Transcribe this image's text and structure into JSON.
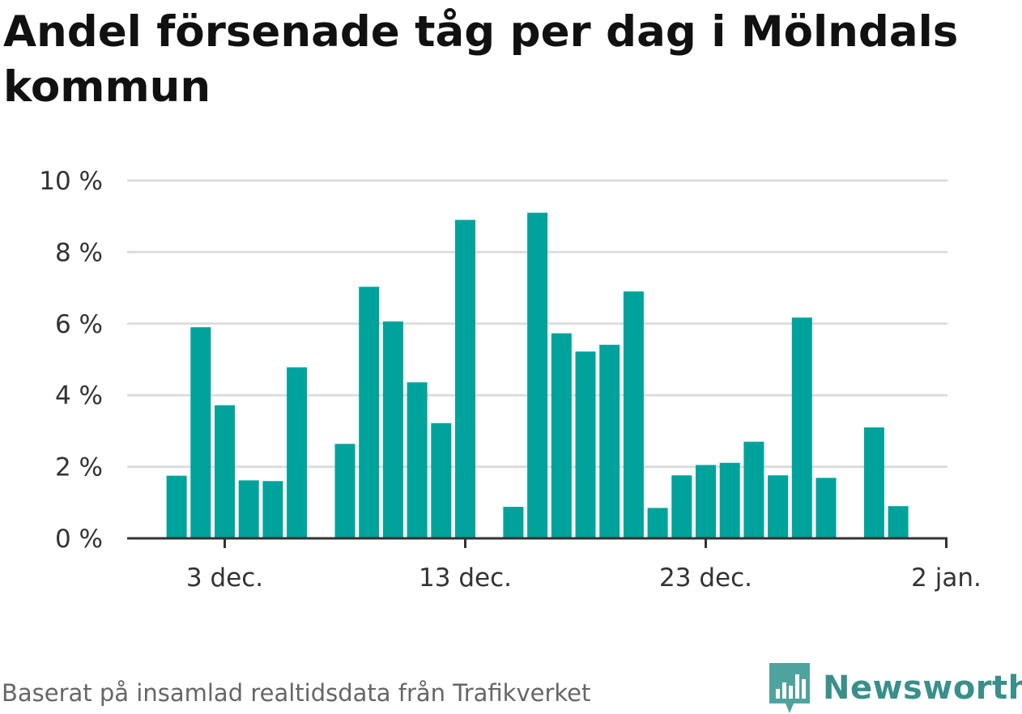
{
  "chart_data": {
    "type": "bar",
    "title": "Andel försenade tåg per dag i Mölndals kommun",
    "xlabel": "",
    "ylabel": "",
    "ylim": [
      0,
      10
    ],
    "y_ticks": [
      0,
      2,
      4,
      6,
      8,
      10
    ],
    "y_tick_labels": [
      "0 %",
      "2 %",
      "4 %",
      "6 %",
      "8 %",
      "10 %"
    ],
    "x_ticks": [
      {
        "day": 3,
        "label": "3 dec."
      },
      {
        "day": 13,
        "label": "13 dec."
      },
      {
        "day": 23,
        "label": "23 dec."
      },
      {
        "day": 33,
        "label": "2 jan."
      }
    ],
    "grid": true,
    "bar_color": "#00a39b",
    "categories": [
      "1 dec.",
      "2 dec.",
      "3 dec.",
      "4 dec.",
      "5 dec.",
      "6 dec.",
      "7 dec.",
      "8 dec.",
      "9 dec.",
      "10 dec.",
      "11 dec.",
      "12 dec.",
      "13 dec.",
      "14 dec.",
      "15 dec.",
      "16 dec.",
      "17 dec.",
      "18 dec.",
      "19 dec.",
      "20 dec.",
      "21 dec.",
      "22 dec.",
      "23 dec.",
      "24 dec.",
      "25 dec.",
      "26 dec.",
      "27 dec.",
      "28 dec.",
      "29 dec.",
      "30 dec.",
      "31 dec.",
      "1 jan."
    ],
    "values": [
      1.75,
      5.9,
      3.72,
      1.62,
      1.6,
      4.78,
      null,
      2.64,
      7.03,
      6.06,
      4.36,
      3.22,
      8.9,
      null,
      0.88,
      9.1,
      5.73,
      5.22,
      5.41,
      6.9,
      0.85,
      1.76,
      2.05,
      2.11,
      2.7,
      1.76,
      6.17,
      1.69,
      null,
      3.1,
      0.9,
      null
    ]
  },
  "source": "Baserat på insamlad realtidsdata från Trafikverket",
  "brand": {
    "name": "Newsworthy",
    "icon": "newsworthy-logo-icon",
    "color": "#3a8f8a"
  }
}
